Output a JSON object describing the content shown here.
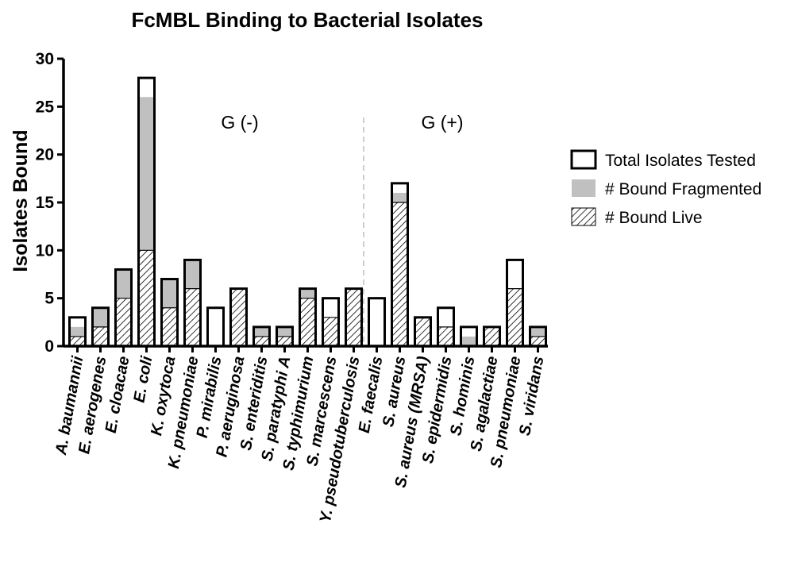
{
  "chart_data": {
    "type": "bar",
    "title": "FcMBL Binding to Bacterial Isolates",
    "ylabel": "Isolates Bound",
    "xlabel": "",
    "ylim": [
      0,
      30
    ],
    "yticks": [
      "0",
      "5",
      "10",
      "15",
      "20",
      "25",
      "30"
    ],
    "categories": [
      "A. baumannii",
      "E. aerogenes",
      "E. cloacae",
      "E. coli",
      "K. oxytoca",
      "K. pneumoniae",
      "P. mirabilis",
      "P. aeruginosa",
      "S. enteriditis",
      "S. paratyphi A",
      "S. typhimurium",
      "S. marcescens",
      "Y. pseudotuberculosis",
      "E. faecalis",
      "S. aureus",
      "S. aureus (MRSA)",
      "S. epidermidis",
      "S. hominis",
      "S. agalactiae",
      "S. pneumoniae",
      "S. viridans"
    ],
    "series": [
      {
        "name": "Total Isolates Tested",
        "values": [
          3,
          4,
          8,
          28,
          7,
          9,
          4,
          6,
          2,
          2,
          6,
          5,
          6,
          5,
          17,
          3,
          4,
          2,
          2,
          9,
          2
        ],
        "color": "#ffffff"
      },
      {
        "name": "# Bound Fragmented",
        "values": [
          2,
          4,
          8,
          26,
          7,
          9,
          0,
          6,
          2,
          2,
          6,
          3,
          6,
          0,
          16,
          3,
          2,
          1,
          2,
          6,
          2
        ],
        "color": "#c0c0c0"
      },
      {
        "name": "# Bound Live",
        "values": [
          1,
          2,
          5,
          10,
          4,
          6,
          0,
          6,
          1,
          1,
          5,
          3,
          6,
          0,
          15,
          3,
          2,
          0,
          2,
          6,
          1
        ],
        "color": "hatched"
      }
    ],
    "annotations": [
      {
        "text": "G (-)",
        "group": "gram-negative"
      },
      {
        "text": "G (+)",
        "group": "gram-positive"
      }
    ],
    "divider_between": [
      "Y. pseudotuberculosis",
      "E. faecalis"
    ],
    "legend_position": "right",
    "grid": false
  }
}
